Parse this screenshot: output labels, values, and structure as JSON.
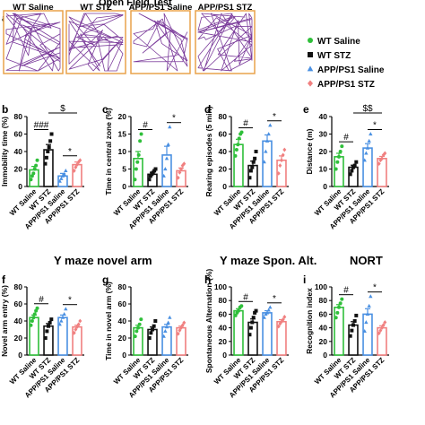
{
  "figure_title": "Open Field Test",
  "section_titles": {
    "ymaze_arm": "Y maze novel arm",
    "ymaze_alt": "Y maze Spon. Alt.",
    "nort": "NORT"
  },
  "track_labels": [
    "WT Saline",
    "WT STZ",
    "APP/PS1 Saline",
    "APP/PS1 STZ"
  ],
  "legend": {
    "items": [
      {
        "label": "WT Saline",
        "marker": "circle",
        "color": "#2fbf3a"
      },
      {
        "label": "WT STZ",
        "marker": "square",
        "color": "#111111"
      },
      {
        "label": "APP/PS1 Saline",
        "marker": "triangle",
        "color": "#4a90e2"
      },
      {
        "label": "APP/PS1 STZ",
        "marker": "diamond",
        "color": "#f08080"
      }
    ]
  },
  "colors": {
    "wt_saline": "#2fbf3a",
    "wt_stz": "#111111",
    "app_saline": "#4a90e2",
    "app_stz": "#f08080",
    "track_frame": "#e8a24a",
    "track_path": "#7a3a9a"
  },
  "chart_data": [
    {
      "panel": "a",
      "type": "table",
      "title": "Open Field Test",
      "categories": [
        "WT Saline",
        "WT STZ",
        "APP/PS1 Saline",
        "APP/PS1 STZ"
      ]
    },
    {
      "panel": "b",
      "type": "bar",
      "ylabel": "Immobility time (%)",
      "ylim": [
        0,
        80
      ],
      "yticks": [
        0,
        20,
        40,
        60,
        80
      ],
      "categories": [
        "WT Saline",
        "WT STZ",
        "APP/PS1 Saline",
        "APP/PS1 STZ"
      ],
      "values": [
        19,
        42,
        12,
        25
      ],
      "errors": [
        4,
        6,
        3,
        3
      ],
      "points": [
        [
          8,
          12,
          15,
          20,
          24,
          30
        ],
        [
          26,
          33,
          40,
          45,
          52,
          60
        ],
        [
          6,
          9,
          12,
          14,
          18
        ],
        [
          18,
          22,
          25,
          28,
          30
        ]
      ],
      "annotations": [
        {
          "text": "###",
          "from": 0,
          "to": 1
        },
        {
          "text": "$",
          "from": 1,
          "to": 3
        },
        {
          "text": "*",
          "from": 2,
          "to": 3
        }
      ]
    },
    {
      "panel": "c",
      "type": "bar",
      "ylabel": "Time in central zone (%)",
      "ylim": [
        0,
        20
      ],
      "yticks": [
        0,
        5,
        10,
        15,
        20
      ],
      "categories": [
        "WT Saline",
        "WT STZ",
        "APP/PS1 Saline",
        "APP/PS1 STZ"
      ],
      "values": [
        8,
        3.5,
        9,
        4.5
      ],
      "errors": [
        2,
        0.6,
        2.5,
        0.8
      ],
      "points": [
        [
          2,
          5,
          7,
          9,
          13,
          15
        ],
        [
          2,
          3,
          3.5,
          4,
          4.5,
          5
        ],
        [
          3,
          5,
          8,
          12,
          17
        ],
        [
          2.5,
          4,
          5,
          6,
          6.5
        ]
      ],
      "annotations": [
        {
          "text": "#",
          "from": 0,
          "to": 1
        },
        {
          "text": "*",
          "from": 2,
          "to": 3
        }
      ]
    },
    {
      "panel": "d",
      "type": "bar",
      "ylabel": "Rearing episodes (5 min)",
      "ylim": [
        0,
        80
      ],
      "yticks": [
        0,
        20,
        40,
        60,
        80
      ],
      "categories": [
        "WT Saline",
        "WT STZ",
        "APP/PS1 Saline",
        "APP/PS1 STZ"
      ],
      "values": [
        48,
        24,
        52,
        30
      ],
      "errors": [
        6,
        5,
        7,
        5
      ],
      "points": [
        [
          35,
          42,
          48,
          55,
          60,
          62
        ],
        [
          10,
          18,
          22,
          28,
          32,
          40
        ],
        [
          28,
          40,
          52,
          60,
          70
        ],
        [
          15,
          24,
          30,
          36,
          42
        ]
      ],
      "annotations": [
        {
          "text": "#",
          "from": 0,
          "to": 1
        },
        {
          "text": "*",
          "from": 2,
          "to": 3
        }
      ]
    },
    {
      "panel": "e",
      "type": "bar",
      "ylabel": "Distance (m)",
      "ylim": [
        0,
        40
      ],
      "yticks": [
        0,
        10,
        20,
        30,
        40
      ],
      "categories": [
        "WT Saline",
        "WT STZ",
        "APP/PS1 Saline",
        "APP/PS1 STZ"
      ],
      "values": [
        17,
        11,
        22,
        16
      ],
      "errors": [
        2,
        1.2,
        2.5,
        1.2
      ],
      "points": [
        [
          10,
          14,
          17,
          20,
          23
        ],
        [
          7,
          9,
          11,
          12,
          14
        ],
        [
          15,
          19,
          22,
          26,
          30
        ],
        [
          13,
          15,
          16,
          18,
          19
        ]
      ],
      "annotations": [
        {
          "text": "#",
          "from": 0,
          "to": 1
        },
        {
          "text": "$$",
          "from": 1,
          "to": 3
        },
        {
          "text": "*",
          "from": 2,
          "to": 3
        }
      ]
    },
    {
      "panel": "f",
      "type": "bar",
      "title": "Y maze novel arm",
      "ylabel": "Novel arm entry (%)",
      "ylim": [
        0,
        80
      ],
      "yticks": [
        0,
        20,
        40,
        60,
        80
      ],
      "categories": [
        "WT Saline",
        "WT STZ",
        "APP/PS1 Saline",
        "APP/PS1 STZ"
      ],
      "values": [
        44,
        34,
        44,
        33
      ],
      "errors": [
        3,
        3,
        3,
        2
      ],
      "points": [
        [
          35,
          40,
          44,
          48,
          52,
          55
        ],
        [
          20,
          28,
          34,
          38,
          42
        ],
        [
          36,
          40,
          44,
          48,
          54
        ],
        [
          26,
          30,
          33,
          36,
          40
        ]
      ],
      "annotations": [
        {
          "text": "#",
          "from": 0,
          "to": 1
        },
        {
          "text": "*",
          "from": 2,
          "to": 3
        }
      ]
    },
    {
      "panel": "g",
      "type": "bar",
      "ylabel": "Time in novel arm (%)",
      "ylim": [
        0,
        80
      ],
      "yticks": [
        0,
        20,
        40,
        60,
        80
      ],
      "categories": [
        "WT Saline",
        "WT STZ",
        "APP/PS1 Saline",
        "APP/PS1 STZ"
      ],
      "values": [
        32,
        30,
        33,
        32
      ],
      "errors": [
        3,
        3,
        3,
        2
      ],
      "points": [
        [
          22,
          28,
          32,
          36,
          42
        ],
        [
          20,
          26,
          30,
          34,
          40
        ],
        [
          22,
          28,
          33,
          38,
          44
        ],
        [
          25,
          29,
          32,
          35,
          38
        ]
      ],
      "annotations": []
    },
    {
      "panel": "h",
      "type": "bar",
      "title": "Y maze Spon. Alt.",
      "ylabel": "Spontaneous Alternation (%)",
      "ylim": [
        0,
        100
      ],
      "yticks": [
        0,
        20,
        40,
        60,
        80,
        100
      ],
      "categories": [
        "WT Saline",
        "WT STZ",
        "APP/PS1 Saline",
        "APP/PS1 STZ"
      ],
      "values": [
        65,
        48,
        62,
        49
      ],
      "errors": [
        3,
        5,
        3,
        3
      ],
      "points": [
        [
          58,
          62,
          65,
          70,
          72
        ],
        [
          30,
          40,
          48,
          55,
          62,
          65
        ],
        [
          55,
          60,
          62,
          66,
          70
        ],
        [
          42,
          46,
          49,
          52,
          56
        ]
      ],
      "annotations": [
        {
          "text": "#",
          "from": 0,
          "to": 1
        },
        {
          "text": "*",
          "from": 2,
          "to": 3
        }
      ]
    },
    {
      "panel": "i",
      "type": "bar",
      "title": "NORT",
      "ylabel": "Recognition index",
      "ylim": [
        0,
        100
      ],
      "yticks": [
        0,
        20,
        40,
        60,
        80,
        100
      ],
      "categories": [
        "WT Saline",
        "WT STZ",
        "APP/PS1 Saline",
        "APP/PS1 STZ"
      ],
      "values": [
        70,
        44,
        60,
        40
      ],
      "errors": [
        4,
        5,
        8,
        3
      ],
      "points": [
        [
          55,
          62,
          70,
          76,
          82
        ],
        [
          28,
          36,
          44,
          50,
          58
        ],
        [
          35,
          48,
          60,
          72,
          86
        ],
        [
          32,
          36,
          40,
          44,
          48
        ]
      ],
      "annotations": [
        {
          "text": "#",
          "from": 0,
          "to": 1
        },
        {
          "text": "*",
          "from": 2,
          "to": 3
        }
      ]
    }
  ]
}
